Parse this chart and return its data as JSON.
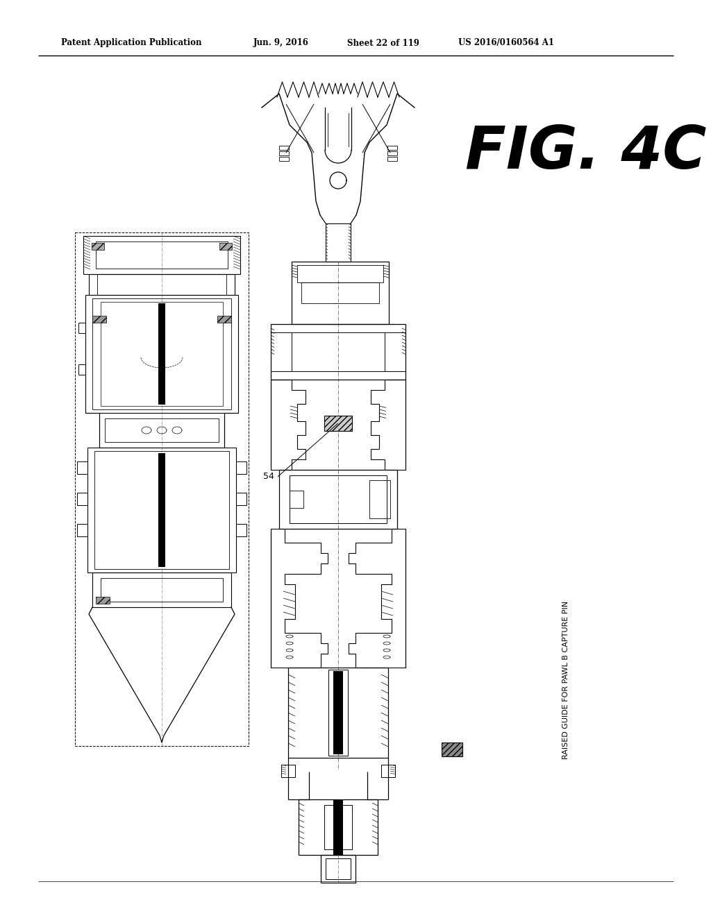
{
  "background_color": "#ffffff",
  "header_text": "Patent Application Publication",
  "header_date": "Jun. 9, 2016",
  "header_sheet": "Sheet 22 of 119",
  "header_patent": "US 2016/0160564 A1",
  "fig_label": "FIG. 4C",
  "legend_text": "RAISED GUIDE FOR PAWL B CAPTURE PIN",
  "page_width": 10.24,
  "page_height": 13.2
}
